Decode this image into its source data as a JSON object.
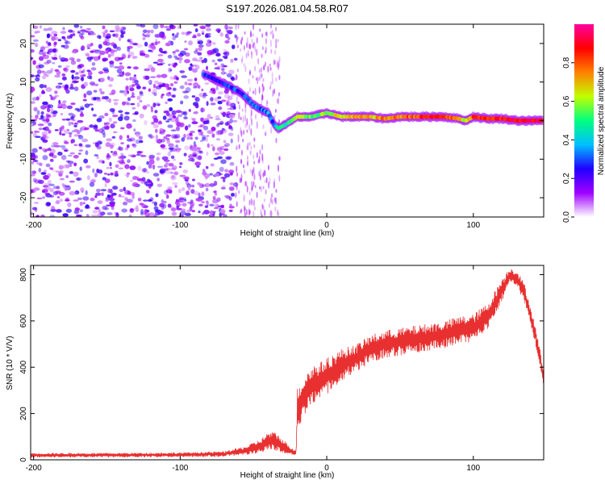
{
  "title": "S197.2026.081.04.58.R07",
  "chart_data": [
    {
      "type": "heatmap",
      "name": "spectrogram",
      "xlabel": "Height of straight line (km)",
      "ylabel": "Frequency (Hz)",
      "xlim": [
        -202,
        148
      ],
      "ylim": [
        -25,
        25
      ],
      "xticks": [
        -200,
        -100,
        0,
        100
      ],
      "yticks": [
        -20,
        -10,
        0,
        10,
        20
      ],
      "colorbar": {
        "label": "Normalized spectral amplitude",
        "range": [
          0.0,
          1.0
        ],
        "ticks": [
          "0.0",
          "0.2",
          "0.4",
          "0.6",
          "0.8"
        ],
        "colors": [
          "#ffffff",
          "#a000ff",
          "#2000ff",
          "#00c0ff",
          "#00ff80",
          "#c0ff00",
          "#ff8000",
          "#ff0000",
          "#ff00a0"
        ]
      },
      "noise_region": [
        -202,
        -62
      ],
      "ridge": [
        {
          "x": -84,
          "y": 12,
          "v": 0.35
        },
        {
          "x": -78,
          "y": 11,
          "v": 0.2
        },
        {
          "x": -62,
          "y": 8,
          "v": 0.3
        },
        {
          "x": -58,
          "y": 7,
          "v": 0.25
        },
        {
          "x": -55,
          "y": 6,
          "v": 0.3
        },
        {
          "x": -50,
          "y": 4,
          "v": 0.35
        },
        {
          "x": -45,
          "y": 3,
          "v": 0.3
        },
        {
          "x": -40,
          "y": 2,
          "v": 0.35
        },
        {
          "x": -36,
          "y": -1,
          "v": 0.3
        },
        {
          "x": -33,
          "y": -2,
          "v": 0.5
        },
        {
          "x": -28,
          "y": -1,
          "v": 0.45
        },
        {
          "x": -20,
          "y": 1,
          "v": 0.6
        },
        {
          "x": -10,
          "y": 1,
          "v": 0.55
        },
        {
          "x": 0,
          "y": 2,
          "v": 0.6
        },
        {
          "x": 10,
          "y": 1,
          "v": 0.65
        },
        {
          "x": 20,
          "y": 1,
          "v": 0.7
        },
        {
          "x": 30,
          "y": 1,
          "v": 0.7
        },
        {
          "x": 40,
          "y": 0.5,
          "v": 0.75
        },
        {
          "x": 50,
          "y": 1,
          "v": 0.75
        },
        {
          "x": 60,
          "y": 1,
          "v": 0.8
        },
        {
          "x": 70,
          "y": 1,
          "v": 0.85
        },
        {
          "x": 80,
          "y": 1,
          "v": 0.85
        },
        {
          "x": 90,
          "y": 0.5,
          "v": 0.7
        },
        {
          "x": 95,
          "y": 0,
          "v": 0.6
        },
        {
          "x": 100,
          "y": 1,
          "v": 0.8
        },
        {
          "x": 110,
          "y": 0.5,
          "v": 0.85
        },
        {
          "x": 120,
          "y": 0.5,
          "v": 0.85
        },
        {
          "x": 130,
          "y": 0,
          "v": 0.9
        },
        {
          "x": 140,
          "y": 0,
          "v": 0.9
        },
        {
          "x": 148,
          "y": 0,
          "v": 0.9
        }
      ]
    },
    {
      "type": "line",
      "name": "snr",
      "xlabel": "Height of straight line (km)",
      "ylabel": "SNR (10 * V/V)",
      "xlim": [
        -202,
        148
      ],
      "ylim": [
        0,
        840
      ],
      "xticks": [
        -200,
        -100,
        0,
        100
      ],
      "yticks": [
        0,
        200,
        400,
        600,
        800
      ],
      "color": "#e83030",
      "series": [
        {
          "name": "SNR",
          "x": [
            -202,
            -150,
            -100,
            -70,
            -55,
            -45,
            -40,
            -35,
            -30,
            -25,
            -21,
            -20,
            -15,
            -10,
            -5,
            0,
            10,
            20,
            30,
            40,
            50,
            60,
            70,
            80,
            90,
            100,
            110,
            120,
            125,
            130,
            135,
            140,
            145,
            148
          ],
          "y": [
            20,
            20,
            22,
            25,
            40,
            60,
            80,
            80,
            60,
            40,
            30,
            220,
            280,
            320,
            340,
            360,
            410,
            440,
            480,
            500,
            510,
            520,
            530,
            540,
            560,
            570,
            620,
            740,
            800,
            780,
            720,
            600,
            460,
            350
          ],
          "noise": [
            10,
            10,
            10,
            12,
            20,
            30,
            40,
            40,
            30,
            20,
            10,
            90,
            90,
            90,
            80,
            80,
            70,
            60,
            60,
            60,
            60,
            60,
            60,
            60,
            60,
            60,
            60,
            50,
            30,
            40,
            40,
            40,
            40,
            30
          ]
        }
      ]
    }
  ]
}
